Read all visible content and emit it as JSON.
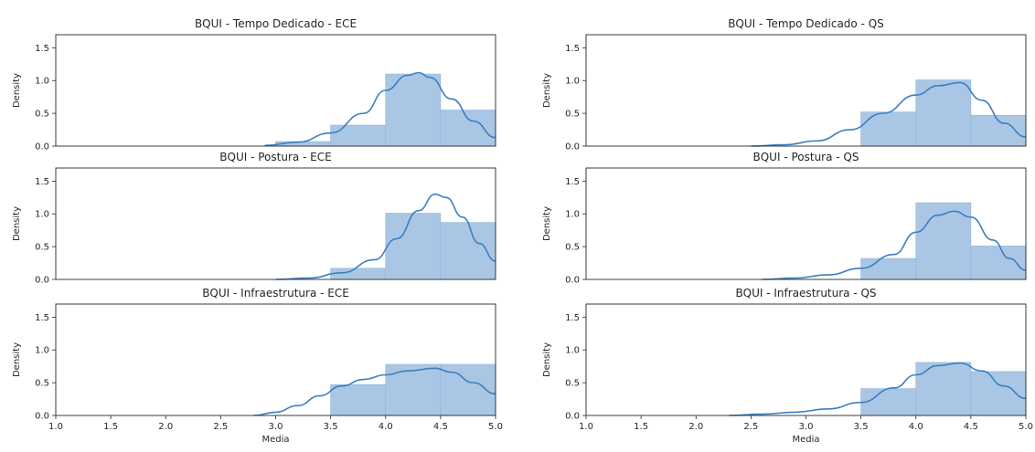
{
  "colors": {
    "bar_fill": "#a9c7e4",
    "bar_edge": "#8fb3d7",
    "kde_line": "#3a7fc0",
    "axis": "#262626"
  },
  "chart_data": [
    {
      "type": "histogram",
      "title": "BQUI - Tempo Dedicado - ECE",
      "ylabel": "Density",
      "xlabel": "",
      "xlim": [
        1.0,
        5.0
      ],
      "ylim": [
        0,
        1.7
      ],
      "yticks": [
        "0.0",
        "0.5",
        "1.0",
        "1.5"
      ],
      "xticks": [],
      "bins": [
        {
          "x0": 3.0,
          "x1": 3.5,
          "density": 0.07
        },
        {
          "x0": 3.5,
          "x1": 4.0,
          "density": 0.32
        },
        {
          "x0": 4.0,
          "x1": 4.5,
          "density": 1.1
        },
        {
          "x0": 4.5,
          "x1": 5.0,
          "density": 0.55
        }
      ],
      "kde": {
        "x": [
          2.9,
          3.2,
          3.5,
          3.8,
          4.0,
          4.2,
          4.3,
          4.4,
          4.6,
          4.8,
          5.0
        ],
        "y": [
          0.01,
          0.06,
          0.2,
          0.5,
          0.85,
          1.08,
          1.12,
          1.05,
          0.72,
          0.38,
          0.13
        ]
      }
    },
    {
      "type": "histogram",
      "title": "BQUI - Tempo Dedicado - QS",
      "ylabel": "Density",
      "xlabel": "",
      "xlim": [
        1.0,
        5.0
      ],
      "ylim": [
        0,
        1.7
      ],
      "yticks": [
        "0.0",
        "0.5",
        "1.0",
        "1.5"
      ],
      "xticks": [],
      "bins": [
        {
          "x0": 3.5,
          "x1": 4.0,
          "density": 0.52
        },
        {
          "x0": 4.0,
          "x1": 4.5,
          "density": 1.01
        },
        {
          "x0": 4.5,
          "x1": 5.0,
          "density": 0.47
        }
      ],
      "kde": {
        "x": [
          2.5,
          2.8,
          3.1,
          3.4,
          3.7,
          4.0,
          4.2,
          4.4,
          4.6,
          4.8,
          5.0
        ],
        "y": [
          0.0,
          0.02,
          0.08,
          0.25,
          0.5,
          0.78,
          0.92,
          0.97,
          0.7,
          0.35,
          0.14
        ]
      }
    },
    {
      "type": "histogram",
      "title": "BQUI - Postura - ECE",
      "ylabel": "Density",
      "xlabel": "",
      "xlim": [
        1.0,
        5.0
      ],
      "ylim": [
        0,
        1.7
      ],
      "yticks": [
        "0.0",
        "0.5",
        "1.0",
        "1.5"
      ],
      "xticks": [],
      "bins": [
        {
          "x0": 3.5,
          "x1": 4.0,
          "density": 0.17
        },
        {
          "x0": 4.0,
          "x1": 4.5,
          "density": 1.01
        },
        {
          "x0": 4.5,
          "x1": 5.0,
          "density": 0.87
        }
      ],
      "kde": {
        "x": [
          3.0,
          3.3,
          3.6,
          3.9,
          4.1,
          4.3,
          4.45,
          4.55,
          4.7,
          4.85,
          5.0
        ],
        "y": [
          0.0,
          0.02,
          0.1,
          0.3,
          0.62,
          1.05,
          1.3,
          1.25,
          0.95,
          0.55,
          0.28
        ]
      }
    },
    {
      "type": "histogram",
      "title": "BQUI - Postura - QS",
      "ylabel": "Density",
      "xlabel": "",
      "xlim": [
        1.0,
        5.0
      ],
      "ylim": [
        0,
        1.7
      ],
      "yticks": [
        "0.0",
        "0.5",
        "1.0",
        "1.5"
      ],
      "xticks": [],
      "bins": [
        {
          "x0": 3.5,
          "x1": 4.0,
          "density": 0.32
        },
        {
          "x0": 4.0,
          "x1": 4.5,
          "density": 1.17
        },
        {
          "x0": 4.5,
          "x1": 5.0,
          "density": 0.51
        }
      ],
      "kde": {
        "x": [
          2.6,
          2.9,
          3.2,
          3.5,
          3.8,
          4.0,
          4.2,
          4.35,
          4.5,
          4.7,
          4.85,
          5.0
        ],
        "y": [
          0.0,
          0.02,
          0.07,
          0.17,
          0.38,
          0.72,
          0.98,
          1.04,
          0.95,
          0.6,
          0.32,
          0.14
        ]
      }
    },
    {
      "type": "histogram",
      "title": "BQUI - Infraestrutura - ECE",
      "ylabel": "Density",
      "xlabel": "Media",
      "xlim": [
        1.0,
        5.0
      ],
      "ylim": [
        0,
        1.7
      ],
      "yticks": [
        "0.0",
        "0.5",
        "1.0",
        "1.5"
      ],
      "xticks": [
        "1.0",
        "1.5",
        "2.0",
        "2.5",
        "3.0",
        "3.5",
        "4.0",
        "4.5",
        "5.0"
      ],
      "bins": [
        {
          "x0": 3.5,
          "x1": 4.0,
          "density": 0.47
        },
        {
          "x0": 4.0,
          "x1": 4.5,
          "density": 0.78
        },
        {
          "x0": 4.5,
          "x1": 5.0,
          "density": 0.78
        }
      ],
      "kde": {
        "x": [
          2.8,
          3.0,
          3.2,
          3.4,
          3.6,
          3.8,
          4.0,
          4.2,
          4.45,
          4.6,
          4.8,
          5.0
        ],
        "y": [
          0.0,
          0.05,
          0.15,
          0.3,
          0.45,
          0.55,
          0.62,
          0.68,
          0.72,
          0.66,
          0.5,
          0.33
        ]
      }
    },
    {
      "type": "histogram",
      "title": "BQUI - Infraestrutura - QS",
      "ylabel": "Density",
      "xlabel": "Media",
      "xlim": [
        1.0,
        5.0
      ],
      "ylim": [
        0,
        1.7
      ],
      "yticks": [
        "0.0",
        "0.5",
        "1.0",
        "1.5"
      ],
      "xticks": [
        "1.0",
        "1.5",
        "2.0",
        "2.5",
        "3.0",
        "3.5",
        "4.0",
        "4.5",
        "5.0"
      ],
      "bins": [
        {
          "x0": 3.5,
          "x1": 4.0,
          "density": 0.41
        },
        {
          "x0": 4.0,
          "x1": 4.5,
          "density": 0.81
        },
        {
          "x0": 4.5,
          "x1": 5.0,
          "density": 0.67
        }
      ],
      "kde": {
        "x": [
          2.3,
          2.6,
          2.9,
          3.2,
          3.5,
          3.8,
          4.0,
          4.2,
          4.4,
          4.6,
          4.8,
          5.0
        ],
        "y": [
          0.0,
          0.02,
          0.05,
          0.1,
          0.2,
          0.42,
          0.62,
          0.76,
          0.8,
          0.68,
          0.45,
          0.26
        ]
      }
    }
  ]
}
